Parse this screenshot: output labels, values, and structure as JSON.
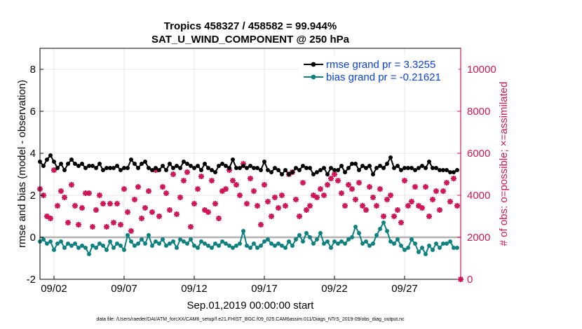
{
  "chart_data": {
    "type": "line",
    "title_line1": "Tropics 458327 / 458582 = 99.944%",
    "title_line2": "SAT_U_WIND_COMPONENT @ 250 hPa",
    "xlabel": "Sep.01,2019 00:00:00 start",
    "ylabel_left": "rmse and bias (model - observation)",
    "ylabel_right": "# of obs: o=possible; ×=assimilated",
    "x_tick_labels": [
      "09/02",
      "09/07",
      "09/12",
      "09/17",
      "09/22",
      "09/27"
    ],
    "x_tick_days": [
      2,
      7,
      12,
      17,
      22,
      27
    ],
    "xlim": [
      1,
      31
    ],
    "y_left_ticks": [
      "-2",
      "0",
      "2",
      "4",
      "6",
      "8"
    ],
    "ylim_left": [
      -2,
      9
    ],
    "y_right_ticks": [
      "0",
      "2000",
      "4000",
      "6000",
      "8000",
      "10000"
    ],
    "ylim_right": [
      0,
      11000
    ],
    "legend": {
      "rmse_label": "rmse grand pr = 3.3255",
      "bias_label": "bias grand pr = -0.21621"
    },
    "footnote": "data file: /Users/raeder/DAI/ATM_forcXX/CAM6_setup/f.e21.FHIST_BGC.f09_025.CAM6assim.011/Diags_NTrS_2019-09/obs_diag_output.nc",
    "colors": {
      "rmse": "#000000",
      "bias": "#0d8080",
      "nobs": "#d11556",
      "zero_line": "#b0b0b0",
      "right_axis": "#d11556",
      "legend_text": "#0a3fe0"
    },
    "series": [
      {
        "name": "rmse",
        "x": [
          1.0,
          1.25,
          1.5,
          1.75,
          2.0,
          2.25,
          2.5,
          2.75,
          3.0,
          3.25,
          3.5,
          3.75,
          4.0,
          4.25,
          4.5,
          4.75,
          5.0,
          5.25,
          5.5,
          5.75,
          6.0,
          6.25,
          6.5,
          6.75,
          7.0,
          7.25,
          7.5,
          7.75,
          8.0,
          8.25,
          8.5,
          8.75,
          9.0,
          9.25,
          9.5,
          9.75,
          10.0,
          10.25,
          10.5,
          10.75,
          11.0,
          11.25,
          11.5,
          11.75,
          12.0,
          12.25,
          12.5,
          12.75,
          13.0,
          13.25,
          13.5,
          13.75,
          14.0,
          14.25,
          14.5,
          14.75,
          15.0,
          15.25,
          15.5,
          15.75,
          16.0,
          16.25,
          16.5,
          16.75,
          17.0,
          17.25,
          17.5,
          17.75,
          18.0,
          18.25,
          18.5,
          18.75,
          19.0,
          19.25,
          19.5,
          19.75,
          20.0,
          20.25,
          20.5,
          20.75,
          21.0,
          21.25,
          21.5,
          21.75,
          22.0,
          22.25,
          22.5,
          22.75,
          23.0,
          23.25,
          23.5,
          23.75,
          24.0,
          24.25,
          24.5,
          24.75,
          25.0,
          25.25,
          25.5,
          25.75,
          26.0,
          26.25,
          26.5,
          26.75,
          27.0,
          27.25,
          27.5,
          27.75,
          28.0,
          28.25,
          28.5,
          28.75,
          29.0,
          29.25,
          29.5,
          29.75,
          30.0,
          30.25,
          30.5,
          30.75
        ],
        "values": [
          3.6,
          3.4,
          3.7,
          3.9,
          3.6,
          3.3,
          3.5,
          3.2,
          3.5,
          3.7,
          3.5,
          3.4,
          3.5,
          3.3,
          3.4,
          3.4,
          3.3,
          3.5,
          3.2,
          3.3,
          3.3,
          3.3,
          3.4,
          3.2,
          3.3,
          3.3,
          3.7,
          3.5,
          3.3,
          3.5,
          3.6,
          3.3,
          3.2,
          3.3,
          3.2,
          3.4,
          3.2,
          3.5,
          3.3,
          3.4,
          3.3,
          3.6,
          3.5,
          3.4,
          3.3,
          3.4,
          3.2,
          3.5,
          3.3,
          3.2,
          3.1,
          3.4,
          3.5,
          3.4,
          3.3,
          3.7,
          3.3,
          3.3,
          3.4,
          3.3,
          3.4,
          3.3,
          3.3,
          3.2,
          3.6,
          3.2,
          3.1,
          3.3,
          3.2,
          3.0,
          3.2,
          3.0,
          3.1,
          3.3,
          3.2,
          3.4,
          3.3,
          3.3,
          3.0,
          3.1,
          3.2,
          3.3,
          3.0,
          3.3,
          3.2,
          3.2,
          3.4,
          3.1,
          3.3,
          3.5,
          3.5,
          3.2,
          3.4,
          3.3,
          3.4,
          3.0,
          3.3,
          3.4,
          3.3,
          3.5,
          3.8,
          3.3,
          3.4,
          3.2,
          3.3,
          3.3,
          3.3,
          3.2,
          3.3,
          3.4,
          3.3,
          3.6,
          3.3,
          3.3,
          3.2,
          3.2,
          3.2,
          3.1,
          3.1,
          3.2
        ]
      },
      {
        "name": "bias",
        "x": [
          1.0,
          1.25,
          1.5,
          1.75,
          2.0,
          2.25,
          2.5,
          2.75,
          3.0,
          3.25,
          3.5,
          3.75,
          4.0,
          4.25,
          4.5,
          4.75,
          5.0,
          5.25,
          5.5,
          5.75,
          6.0,
          6.25,
          6.5,
          6.75,
          7.0,
          7.25,
          7.5,
          7.75,
          8.0,
          8.25,
          8.5,
          8.75,
          9.0,
          9.25,
          9.5,
          9.75,
          10.0,
          10.25,
          10.5,
          10.75,
          11.0,
          11.25,
          11.5,
          11.75,
          12.0,
          12.25,
          12.5,
          12.75,
          13.0,
          13.25,
          13.5,
          13.75,
          14.0,
          14.25,
          14.5,
          14.75,
          15.0,
          15.25,
          15.5,
          15.75,
          16.0,
          16.25,
          16.5,
          16.75,
          17.0,
          17.25,
          17.5,
          17.75,
          18.0,
          18.25,
          18.5,
          18.75,
          19.0,
          19.25,
          19.5,
          19.75,
          20.0,
          20.25,
          20.5,
          20.75,
          21.0,
          21.25,
          21.5,
          21.75,
          22.0,
          22.25,
          22.5,
          22.75,
          23.0,
          23.25,
          23.5,
          23.75,
          24.0,
          24.25,
          24.5,
          24.75,
          25.0,
          25.25,
          25.5,
          25.75,
          26.0,
          26.25,
          26.5,
          26.75,
          27.0,
          27.25,
          27.5,
          27.75,
          28.0,
          28.25,
          28.5,
          28.75,
          29.0,
          29.25,
          29.5,
          29.75,
          30.0,
          30.25,
          30.5,
          30.75
        ],
        "values": [
          -0.2,
          -0.1,
          -0.3,
          -0.2,
          -0.6,
          -0.3,
          -0.2,
          -0.5,
          -0.3,
          -0.4,
          -0.3,
          -0.5,
          -0.4,
          -0.5,
          -0.8,
          -0.4,
          -0.5,
          -0.3,
          -0.4,
          -0.6,
          -0.2,
          -0.5,
          -0.3,
          -0.4,
          -0.6,
          0.1,
          -0.2,
          -0.4,
          -0.3,
          -0.1,
          -0.3,
          0.1,
          -0.4,
          -0.2,
          -0.3,
          -0.1,
          -0.4,
          -0.3,
          -0.2,
          -0.5,
          -0.1,
          -0.2,
          -0.3,
          -0.1,
          -0.4,
          -0.5,
          -0.2,
          -0.3,
          -0.4,
          -0.5,
          -0.3,
          -0.4,
          -0.2,
          -0.3,
          -0.4,
          -0.5,
          -0.4,
          -0.3,
          0.3,
          -0.4,
          -0.5,
          -0.3,
          -0.5,
          -0.4,
          -0.2,
          -0.1,
          -0.3,
          -0.4,
          -0.3,
          -0.4,
          -0.5,
          -0.2,
          -0.4,
          -0.1,
          0.1,
          -0.2,
          0.2,
          0.0,
          -0.3,
          -0.1,
          0.2,
          -0.3,
          -0.2,
          -0.5,
          -0.2,
          -0.3,
          -0.2,
          -0.3,
          -0.1,
          0.0,
          0.5,
          0.2,
          -0.3,
          -0.2,
          -0.4,
          -0.3,
          0.1,
          0.4,
          0.7,
          0.3,
          -0.2,
          -0.3,
          -0.1,
          -0.4,
          -0.6,
          -0.5,
          -0.1,
          -0.3,
          -0.7,
          -0.5,
          -0.8,
          -0.4,
          -0.6,
          -0.3,
          -0.5,
          -0.3,
          -0.3,
          -0.2,
          -0.5,
          -0.5
        ]
      },
      {
        "name": "nobs_assimilated",
        "axis": "right",
        "x": [
          1.0,
          1.25,
          1.5,
          1.75,
          2.0,
          2.25,
          2.5,
          2.75,
          3.0,
          3.25,
          3.5,
          3.75,
          4.0,
          4.25,
          4.5,
          4.75,
          5.0,
          5.25,
          5.5,
          5.75,
          6.0,
          6.25,
          6.5,
          6.75,
          7.0,
          7.25,
          7.5,
          7.75,
          8.0,
          8.25,
          8.5,
          8.75,
          9.0,
          9.25,
          9.5,
          9.75,
          10.0,
          10.25,
          10.5,
          10.75,
          11.0,
          11.25,
          11.5,
          11.75,
          12.0,
          12.25,
          12.5,
          12.75,
          13.0,
          13.25,
          13.5,
          13.75,
          14.0,
          14.25,
          14.5,
          14.75,
          15.0,
          15.25,
          15.5,
          15.75,
          16.0,
          16.25,
          16.5,
          16.75,
          17.0,
          17.25,
          17.5,
          17.75,
          18.0,
          18.25,
          18.5,
          18.75,
          19.0,
          19.25,
          19.5,
          19.75,
          20.0,
          20.25,
          20.5,
          20.75,
          21.0,
          21.25,
          21.5,
          21.75,
          22.0,
          22.25,
          22.5,
          22.75,
          23.0,
          23.25,
          23.5,
          23.75,
          24.0,
          24.25,
          24.5,
          24.75,
          25.0,
          25.25,
          25.5,
          25.75,
          26.0,
          26.25,
          26.5,
          26.75,
          27.0,
          27.25,
          27.5,
          27.75,
          28.0,
          28.25,
          28.5,
          28.75,
          29.0,
          29.25,
          29.5,
          29.75,
          30.0,
          30.25,
          30.5,
          30.75,
          31.0
        ],
        "values": [
          4300,
          4000,
          3000,
          2900,
          5200,
          3500,
          4200,
          3900,
          2700,
          4500,
          3500,
          2600,
          3400,
          4100,
          4100,
          2500,
          3300,
          4000,
          3600,
          2500,
          3600,
          2700,
          3600,
          2600,
          4300,
          3200,
          2300,
          3800,
          4400,
          2900,
          3400,
          4200,
          3200,
          5200,
          3000,
          4400,
          4100,
          3300,
          5000,
          3100,
          3900,
          4700,
          5100,
          2500,
          3600,
          4300,
          4900,
          3300,
          3200,
          4700,
          3600,
          2900,
          4200,
          4300,
          5200,
          4700,
          4500,
          4000,
          5500,
          3600,
          4800,
          4200,
          3500,
          2600,
          4500,
          3700,
          3000,
          3900,
          3400,
          4000,
          3500,
          5000,
          5100,
          3800,
          3000,
          4600,
          3300,
          3500,
          4000,
          3900,
          4300,
          4000,
          4500,
          4800,
          5000,
          4700,
          4100,
          3500,
          4500,
          4300,
          3800,
          4600,
          3500,
          3300,
          4400,
          3900,
          3500,
          4300,
          3000,
          3800,
          4000,
          3000,
          3300,
          2700,
          4700,
          3500,
          3700,
          4400,
          3500,
          3400,
          4400,
          3000,
          3800,
          4200,
          3300,
          4200,
          4600,
          3700,
          4800,
          3500,
          0
        ]
      }
    ]
  }
}
